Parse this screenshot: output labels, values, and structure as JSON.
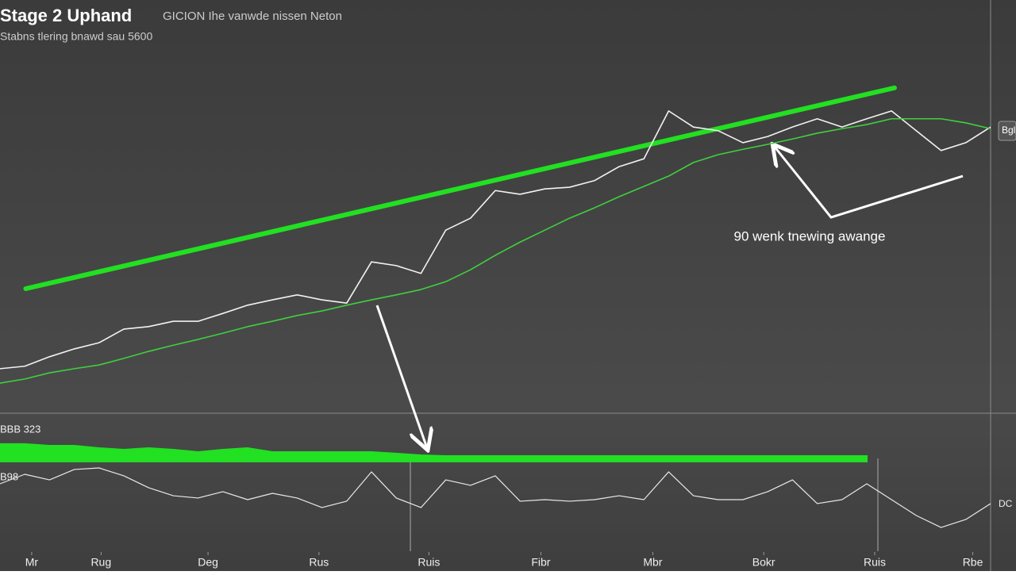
{
  "header": {
    "title": "Stage 2 Uphand",
    "note": "GICION  Ihe vanwde nissen Neton",
    "subtitle": "Stabns tlering bnawd sau  5600"
  },
  "chart_data": [
    {
      "type": "line",
      "xlim": [
        0,
        100
      ],
      "ylim": [
        0,
        100
      ],
      "x": [
        0,
        2.5,
        5,
        7.5,
        10,
        12.5,
        15,
        17.5,
        20,
        22.5,
        25,
        27.5,
        30,
        32.5,
        35,
        37.5,
        40,
        42.5,
        45,
        47.5,
        50,
        52.5,
        55,
        57.5,
        60,
        62.5,
        65,
        67.5,
        70,
        72.5,
        75,
        77.5,
        80,
        82.5,
        85,
        87.5,
        90,
        92.5,
        95,
        97.5,
        100
      ],
      "series": [
        {
          "color": "#f2f2f2",
          "width": 1.6,
          "values": [
            10.6,
            11.2,
            13.5,
            15.4,
            16.9,
            20.2,
            20.8,
            22.1,
            22.1,
            24.0,
            26.0,
            27.3,
            28.5,
            27.3,
            26.5,
            36.5,
            35.6,
            33.7,
            44.2,
            47.1,
            53.8,
            52.9,
            54.2,
            54.6,
            56.2,
            59.6,
            61.5,
            73.1,
            69.2,
            68.3,
            65.4,
            66.9,
            69.2,
            71.2,
            69.2,
            71.2,
            73.1,
            68.3,
            63.5,
            65.4,
            69.2
          ]
        },
        {
          "color": "#3fd03f",
          "width": 1.6,
          "values": [
            7.1,
            8.1,
            9.6,
            10.6,
            11.5,
            13.1,
            14.8,
            16.3,
            17.7,
            19.2,
            20.8,
            22.1,
            23.5,
            24.6,
            26.0,
            27.3,
            28.5,
            29.8,
            31.7,
            34.6,
            38.1,
            41.3,
            44.2,
            47.1,
            49.6,
            52.3,
            54.8,
            57.3,
            60.6,
            62.5,
            63.8,
            65.0,
            66.3,
            67.7,
            68.8,
            69.8,
            71.2,
            71.2,
            71.2,
            70.2,
            68.8
          ]
        }
      ],
      "trendline": {
        "color": "#22e022",
        "x": [
          2.6,
          90.3
        ],
        "y": [
          30.0,
          78.7
        ]
      },
      "annotation": "90 wenk tnewing awange",
      "right_label": "Bgl"
    },
    {
      "type": "line",
      "xlim": [
        0,
        100
      ],
      "ylim": [
        0,
        100
      ],
      "x": [
        0,
        2.5,
        5,
        7.5,
        10,
        12.5,
        15,
        17.5,
        20,
        22.5,
        25,
        27.5,
        30,
        32.5,
        35,
        37.5,
        40,
        42.5,
        45,
        47.5,
        50,
        52.5,
        55,
        57.5,
        60,
        62.5,
        65,
        67.5,
        70,
        72.5,
        75,
        77.5,
        80,
        82.5,
        85,
        87.5,
        90,
        92.5,
        95,
        97.5,
        100
      ],
      "series": [
        {
          "type": "area",
          "color": "#22e022",
          "values": [
            81.3,
            81.3,
            80,
            80,
            78.1,
            76.9,
            78.1,
            76.9,
            75,
            76.9,
            78.1,
            75,
            75,
            75,
            75,
            75,
            73.8,
            72.5,
            71.9,
            71.9,
            71.9,
            71.9,
            71.9,
            71.9,
            71.9,
            71.9,
            71.9,
            71.9,
            71.9,
            71.9,
            71.9,
            71.9,
            71.9,
            71.9,
            71.9,
            71.9,
            null,
            null,
            null,
            null,
            null
          ]
        },
        {
          "type": "line",
          "color": "#e8e8e8",
          "values": [
            50,
            57.5,
            53.1,
            61.3,
            62.5,
            56.3,
            46.9,
            40.6,
            38.8,
            43.8,
            37.5,
            42.5,
            38.8,
            31.3,
            36.3,
            59.4,
            38.8,
            31.3,
            53.1,
            48.8,
            56.3,
            36.3,
            37.5,
            36.3,
            37.5,
            40.6,
            37.5,
            59.4,
            40.6,
            37.5,
            37.5,
            43.8,
            53.1,
            34.4,
            37.5,
            50,
            37.5,
            25,
            15.6,
            21.9,
            34.4
          ]
        }
      ],
      "xticks": [
        {
          "value": 3.2,
          "label": "Mr"
        },
        {
          "value": 10.2,
          "label": "Rug"
        },
        {
          "value": 21.0,
          "label": "Deg"
        },
        {
          "value": 32.2,
          "label": "Rus"
        },
        {
          "value": 43.3,
          "label": "Ruis"
        },
        {
          "value": 54.6,
          "label": "Fibr"
        },
        {
          "value": 65.9,
          "label": "Mbr"
        },
        {
          "value": 77.1,
          "label": "Bokr"
        },
        {
          "value": 88.3,
          "label": "Ruis"
        },
        {
          "value": 98.2,
          "label": "Rbe"
        }
      ],
      "top_label": "BBB 323",
      "left_label": "B98",
      "right_label": "DC"
    }
  ]
}
